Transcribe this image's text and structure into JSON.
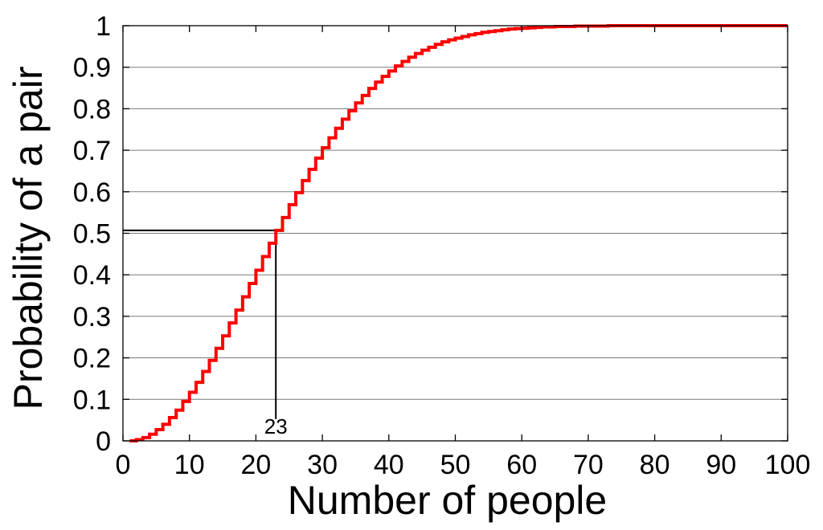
{
  "chart_data": {
    "type": "line",
    "step": true,
    "title": "",
    "xlabel": "Number of people",
    "ylabel": "Probability of a pair",
    "xlim": [
      0,
      100
    ],
    "ylim": [
      0,
      1
    ],
    "x_ticks": [
      0,
      10,
      20,
      30,
      40,
      50,
      60,
      70,
      80,
      90,
      100
    ],
    "x_tick_labels": [
      "0",
      "10",
      "20",
      "30",
      "40",
      "50",
      "60",
      "70",
      "80",
      "90",
      "100"
    ],
    "y_ticks": [
      0,
      0.1,
      0.2,
      0.3,
      0.4,
      0.5,
      0.6,
      0.7,
      0.8,
      0.9,
      1
    ],
    "y_tick_labels": [
      "0",
      "0.1",
      "0.2",
      "0.3",
      "0.4",
      "0.5",
      "0.6",
      "0.7",
      "0.8",
      "0.9",
      "1"
    ],
    "grid": "horizontal",
    "line_color": "#ff0000",
    "series": [
      {
        "x": [
          1,
          2,
          3,
          4,
          5,
          6,
          7,
          8,
          9,
          10,
          11,
          12,
          13,
          14,
          15,
          16,
          17,
          18,
          19,
          20,
          21,
          22,
          23,
          24,
          25,
          26,
          27,
          28,
          29,
          30,
          31,
          32,
          33,
          34,
          35,
          36,
          37,
          38,
          39,
          40,
          41,
          42,
          43,
          44,
          45,
          46,
          47,
          48,
          49,
          50,
          51,
          52,
          53,
          54,
          55,
          56,
          57,
          58,
          59,
          60,
          61,
          62,
          63,
          64,
          65,
          66,
          67,
          68,
          69,
          70,
          71,
          72,
          73,
          74,
          75,
          76,
          77,
          78,
          79,
          80,
          81,
          82,
          83,
          84,
          85,
          86,
          87,
          88,
          89,
          90,
          91,
          92,
          93,
          94,
          95,
          96,
          97,
          98,
          99,
          100
        ],
        "values": [
          0,
          0.003,
          0.008,
          0.016,
          0.027,
          0.04,
          0.056,
          0.074,
          0.095,
          0.117,
          0.141,
          0.167,
          0.194,
          0.223,
          0.253,
          0.284,
          0.315,
          0.347,
          0.379,
          0.411,
          0.444,
          0.476,
          0.507,
          0.538,
          0.569,
          0.598,
          0.627,
          0.654,
          0.681,
          0.706,
          0.73,
          0.753,
          0.775,
          0.795,
          0.814,
          0.832,
          0.849,
          0.864,
          0.878,
          0.891,
          0.903,
          0.914,
          0.924,
          0.933,
          0.941,
          0.948,
          0.955,
          0.961,
          0.966,
          0.97,
          0.974,
          0.978,
          0.981,
          0.984,
          0.986,
          0.988,
          0.99,
          0.992,
          0.993,
          0.994,
          0.995,
          0.996,
          0.997,
          0.997,
          0.998,
          0.998,
          0.998,
          0.999,
          0.999,
          0.999,
          0.999,
          0.999,
          1.0,
          1.0,
          1.0,
          1.0,
          1.0,
          1.0,
          1.0,
          1.0,
          1.0,
          1.0,
          1.0,
          1.0,
          1.0,
          1.0,
          1.0,
          1.0,
          1.0,
          1.0,
          1.0,
          1.0,
          1.0,
          1.0,
          1.0,
          1.0,
          1.0,
          1.0,
          1.0,
          1.0
        ]
      }
    ],
    "annotation": {
      "label": "23",
      "x": 23,
      "y": 0.507
    }
  }
}
